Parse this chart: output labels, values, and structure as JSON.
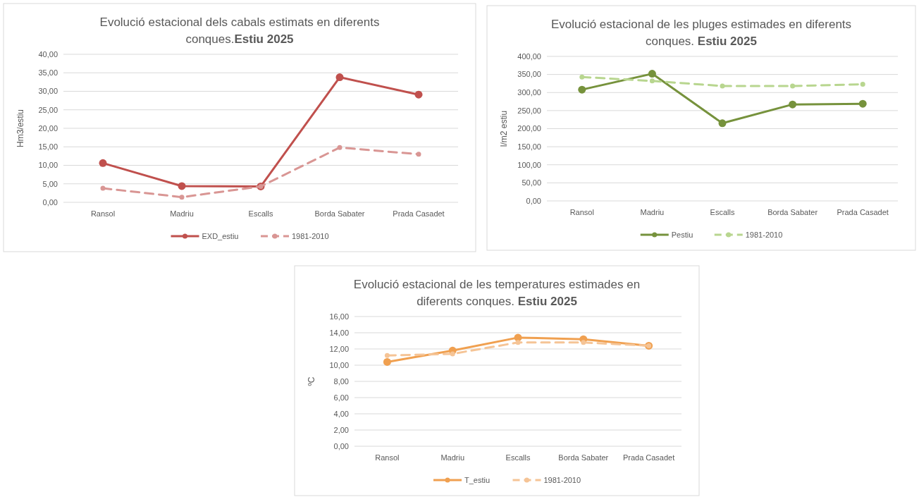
{
  "chart_data": [
    {
      "type": "line",
      "title": "Evolució estacional dels cabals estimats en diferents conques.Estiu 2025",
      "ylabel": "Hm3/estiu",
      "categories": [
        "Ransol",
        "Madriu",
        "Escalls",
        "Borda Sabater",
        "Prada Casadet"
      ],
      "series": [
        {
          "name": "EXD_estiu",
          "color": "#c0504d",
          "values": [
            10.6,
            4.4,
            4.3,
            33.8,
            29.1
          ],
          "line_style": "solid"
        },
        {
          "name": "1981-2010",
          "color": "#d99694",
          "values": [
            3.8,
            1.4,
            4.3,
            14.8,
            13.0
          ],
          "line_style": "dashed"
        }
      ],
      "ylim": [
        0,
        40
      ],
      "yticks": [
        {
          "value": 0,
          "label": "0,00"
        },
        {
          "value": 5,
          "label": "5,00"
        },
        {
          "value": 10,
          "label": "10,00"
        },
        {
          "value": 15,
          "label": "15,00"
        },
        {
          "value": 20,
          "label": "20,00"
        },
        {
          "value": 25,
          "label": "25,00"
        },
        {
          "value": 30,
          "label": "30,00"
        },
        {
          "value": 35,
          "label": "35,00"
        },
        {
          "value": 40,
          "label": "40,00"
        }
      ],
      "grid": "y",
      "legend": "bottom",
      "marker": "circle"
    },
    {
      "type": "line",
      "title": "Evolució estacional de les pluges estimades en diferents conques. Estiu 2025",
      "ylabel": "l/m2 estiu",
      "categories": [
        "Ransol",
        "Madriu",
        "Escalls",
        "Borda Sabater",
        "Prada Casadet"
      ],
      "series": [
        {
          "name": "Pestiu",
          "color": "#76923c",
          "values": [
            308,
            352,
            215,
            267,
            269
          ],
          "line_style": "solid"
        },
        {
          "name": "1981-2010",
          "color": "#b8d68f",
          "values": [
            343,
            332,
            318,
            318,
            323
          ],
          "line_style": "dashed"
        }
      ],
      "ylim": [
        0,
        400
      ],
      "yticks": [
        {
          "value": 0,
          "label": "0,00"
        },
        {
          "value": 50,
          "label": "50,00"
        },
        {
          "value": 100,
          "label": "100,00"
        },
        {
          "value": 150,
          "label": "150,00"
        },
        {
          "value": 200,
          "label": "200,00"
        },
        {
          "value": 250,
          "label": "250,00"
        },
        {
          "value": 300,
          "label": "300,00"
        },
        {
          "value": 350,
          "label": "350,00"
        },
        {
          "value": 400,
          "label": "400,00"
        }
      ],
      "grid": "y",
      "legend": "bottom",
      "marker": "circle"
    },
    {
      "type": "line",
      "title": "Evolució estacional de les temperatures estimades en diferents conques. Estiu 2025",
      "ylabel": "ºC",
      "categories": [
        "Ransol",
        "Madriu",
        "Escalls",
        "Borda Sabater",
        "Prada Casadet"
      ],
      "series": [
        {
          "name": "T_estiu",
          "color": "#f0a050",
          "values": [
            10.4,
            11.8,
            13.4,
            13.2,
            12.4
          ],
          "line_style": "solid"
        },
        {
          "name": "1981-2010",
          "color": "#f5c496",
          "values": [
            11.2,
            11.4,
            12.8,
            12.8,
            12.4
          ],
          "line_style": "dashed"
        }
      ],
      "ylim": [
        0,
        16
      ],
      "yticks": [
        {
          "value": 0,
          "label": "0,00"
        },
        {
          "value": 2,
          "label": "2,00"
        },
        {
          "value": 4,
          "label": "4,00"
        },
        {
          "value": 6,
          "label": "6,00"
        },
        {
          "value": 8,
          "label": "8,00"
        },
        {
          "value": 10,
          "label": "10,00"
        },
        {
          "value": 12,
          "label": "12,00"
        },
        {
          "value": 14,
          "label": "14,00"
        },
        {
          "value": 16,
          "label": "16,00"
        }
      ],
      "grid": "y",
      "legend": "bottom",
      "marker": "circle"
    }
  ]
}
